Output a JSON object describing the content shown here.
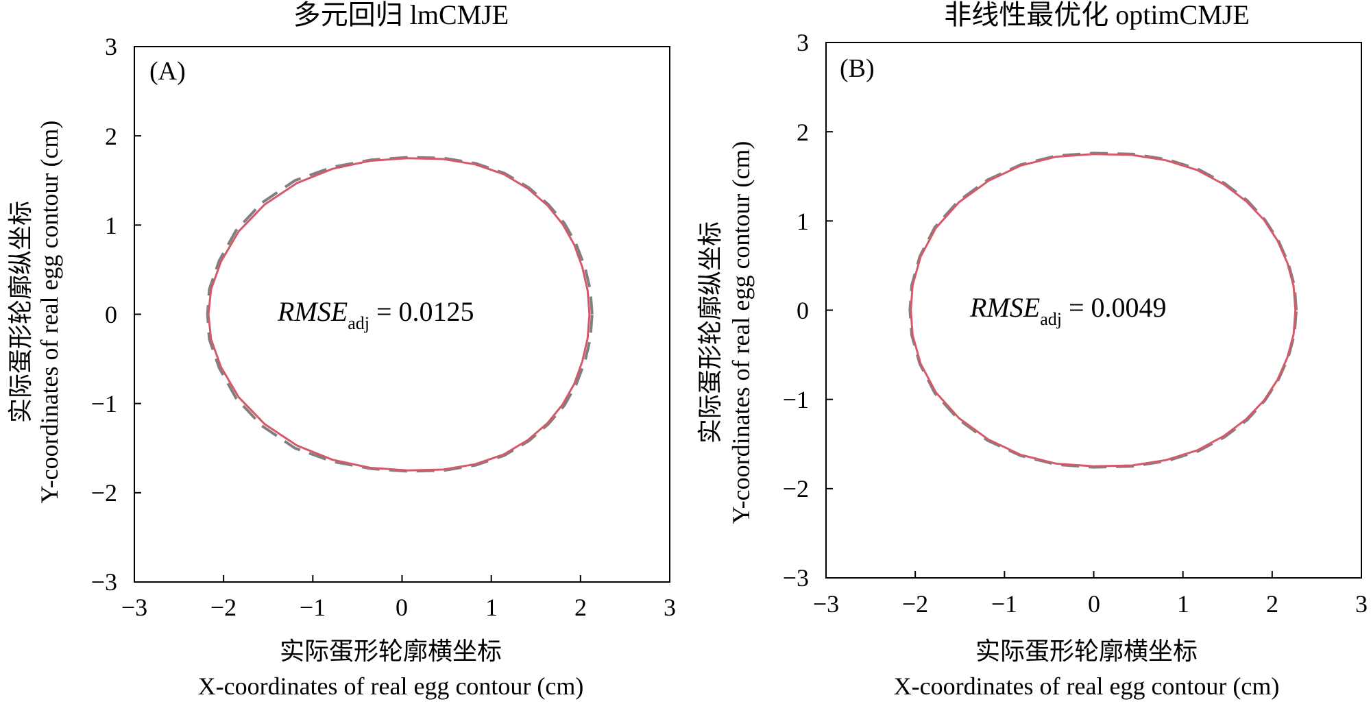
{
  "chart_data": [
    {
      "type": "line",
      "title": "多元回归 lmCMJE",
      "panel_label": "(A)",
      "xlabel_zh": "实际蛋形轮廓横坐标",
      "xlabel_en": "X-coordinates of real egg contour (cm)",
      "ylabel_zh": "实际蛋形轮廓纵坐标",
      "ylabel_en": "Y-coordinates of real egg contour (cm)",
      "xlim": [
        -3,
        3
      ],
      "ylim": [
        -3,
        3
      ],
      "xticks": [
        -3,
        -2,
        -1,
        0,
        1,
        2,
        3
      ],
      "yticks": [
        -3,
        -2,
        -1,
        0,
        1,
        2,
        3
      ],
      "xtick_labels": [
        "−3",
        "−2",
        "−1",
        "0",
        "1",
        "2",
        "3"
      ],
      "ytick_labels": [
        "−3",
        "−2",
        "−1",
        "0",
        "1",
        "2",
        "3"
      ],
      "annotation": {
        "label": "RMSE",
        "subscript": "adj",
        "equals": " = ",
        "value": "0.0125",
        "at": [
          -0.55,
          0
        ]
      },
      "series": [
        {
          "style": "dashed",
          "color": "#808080",
          "x": [
            2.13,
            2.11,
            2.05,
            1.95,
            1.82,
            1.64,
            1.42,
            1.15,
            0.83,
            0.47,
            0.07,
            -0.35,
            -0.78,
            -1.2,
            -1.57,
            -1.86,
            -2.05,
            -2.16,
            -2.18,
            -2.16,
            -2.05,
            -1.86,
            -1.57,
            -1.2,
            -0.78,
            -0.35,
            0.07,
            0.47,
            0.83,
            1.15,
            1.42,
            1.64,
            1.82,
            1.95,
            2.05,
            2.11,
            2.13
          ],
          "y": [
            0.0,
            0.27,
            0.53,
            0.79,
            1.02,
            1.23,
            1.42,
            1.58,
            1.69,
            1.75,
            1.76,
            1.73,
            1.65,
            1.5,
            1.25,
            0.94,
            0.6,
            0.28,
            0.0,
            -0.28,
            -0.6,
            -0.94,
            -1.25,
            -1.5,
            -1.65,
            -1.73,
            -1.76,
            -1.75,
            -1.69,
            -1.58,
            -1.42,
            -1.23,
            -1.02,
            -0.79,
            -0.53,
            -0.27,
            0.0
          ]
        },
        {
          "style": "solid",
          "color": "#d45a6a",
          "x": [
            2.1,
            2.08,
            2.02,
            1.93,
            1.8,
            1.63,
            1.41,
            1.14,
            0.82,
            0.46,
            0.06,
            -0.36,
            -0.78,
            -1.18,
            -1.54,
            -1.83,
            -2.03,
            -2.14,
            -2.17,
            -2.14,
            -2.03,
            -1.83,
            -1.54,
            -1.18,
            -0.78,
            -0.36,
            0.06,
            0.46,
            0.82,
            1.14,
            1.41,
            1.63,
            1.8,
            1.93,
            2.02,
            2.08,
            2.1
          ],
          "y": [
            0.0,
            0.27,
            0.53,
            0.78,
            1.01,
            1.22,
            1.41,
            1.57,
            1.68,
            1.74,
            1.75,
            1.72,
            1.63,
            1.47,
            1.23,
            0.93,
            0.59,
            0.28,
            0.0,
            -0.28,
            -0.59,
            -0.93,
            -1.23,
            -1.47,
            -1.63,
            -1.72,
            -1.75,
            -1.74,
            -1.68,
            -1.57,
            -1.41,
            -1.22,
            -1.01,
            -0.78,
            -0.53,
            -0.27,
            0.0
          ]
        }
      ]
    },
    {
      "type": "line",
      "title": "非线性最优化 optimCMJE",
      "panel_label": "(B)",
      "xlabel_zh": "实际蛋形轮廓横坐标",
      "xlabel_en": "X-coordinates of real egg contour (cm)",
      "ylabel_zh": "实际蛋形轮廓纵坐标",
      "ylabel_en": "Y-coordinates of real egg contour (cm)",
      "xlim": [
        -3,
        3
      ],
      "ylim": [
        -3,
        3
      ],
      "xticks": [
        -3,
        -2,
        -1,
        0,
        1,
        2,
        3
      ],
      "yticks": [
        -3,
        -2,
        -1,
        0,
        1,
        2,
        3
      ],
      "xtick_labels": [
        "−3",
        "−2",
        "−1",
        "0",
        "1",
        "2",
        "3"
      ],
      "ytick_labels": [
        "−3",
        "−2",
        "−1",
        "0",
        "1",
        "2",
        "3"
      ],
      "annotation": {
        "label": "RMSE",
        "subscript": "adj",
        "equals": " = ",
        "value": "0.0049",
        "at": [
          -0.6,
          0
        ]
      },
      "series": [
        {
          "style": "dashed",
          "color": "#808080",
          "x": [
            2.27,
            2.25,
            2.18,
            2.07,
            1.92,
            1.72,
            1.47,
            1.17,
            0.82,
            0.43,
            0.0,
            -0.42,
            -0.82,
            -1.19,
            -1.52,
            -1.78,
            -1.95,
            -2.04,
            -2.06,
            -2.04,
            -1.95,
            -1.78,
            -1.52,
            -1.19,
            -0.82,
            -0.42,
            0.0,
            0.43,
            0.82,
            1.17,
            1.47,
            1.72,
            1.92,
            2.07,
            2.18,
            2.25,
            2.27
          ],
          "y": [
            0.0,
            0.27,
            0.53,
            0.78,
            1.01,
            1.23,
            1.42,
            1.58,
            1.69,
            1.75,
            1.76,
            1.73,
            1.63,
            1.46,
            1.22,
            0.93,
            0.6,
            0.28,
            0.0,
            -0.28,
            -0.6,
            -0.93,
            -1.22,
            -1.46,
            -1.63,
            -1.73,
            -1.76,
            -1.75,
            -1.69,
            -1.58,
            -1.42,
            -1.23,
            -1.01,
            -0.78,
            -0.53,
            -0.27,
            0.0
          ]
        },
        {
          "style": "solid",
          "color": "#d45a6a",
          "x": [
            2.26,
            2.24,
            2.17,
            2.06,
            1.91,
            1.71,
            1.46,
            1.16,
            0.81,
            0.43,
            0.0,
            -0.42,
            -0.82,
            -1.18,
            -1.51,
            -1.77,
            -1.94,
            -2.03,
            -2.05,
            -2.03,
            -1.94,
            -1.77,
            -1.51,
            -1.18,
            -0.82,
            -0.42,
            0.0,
            0.43,
            0.81,
            1.16,
            1.46,
            1.71,
            1.91,
            2.06,
            2.17,
            2.24,
            2.26
          ],
          "y": [
            0.0,
            0.27,
            0.53,
            0.78,
            1.01,
            1.22,
            1.41,
            1.57,
            1.68,
            1.74,
            1.75,
            1.72,
            1.62,
            1.45,
            1.21,
            0.92,
            0.6,
            0.28,
            0.0,
            -0.28,
            -0.6,
            -0.92,
            -1.21,
            -1.45,
            -1.62,
            -1.72,
            -1.75,
            -1.74,
            -1.68,
            -1.57,
            -1.41,
            -1.22,
            -1.01,
            -0.78,
            -0.53,
            -0.27,
            0.0
          ]
        }
      ]
    }
  ]
}
